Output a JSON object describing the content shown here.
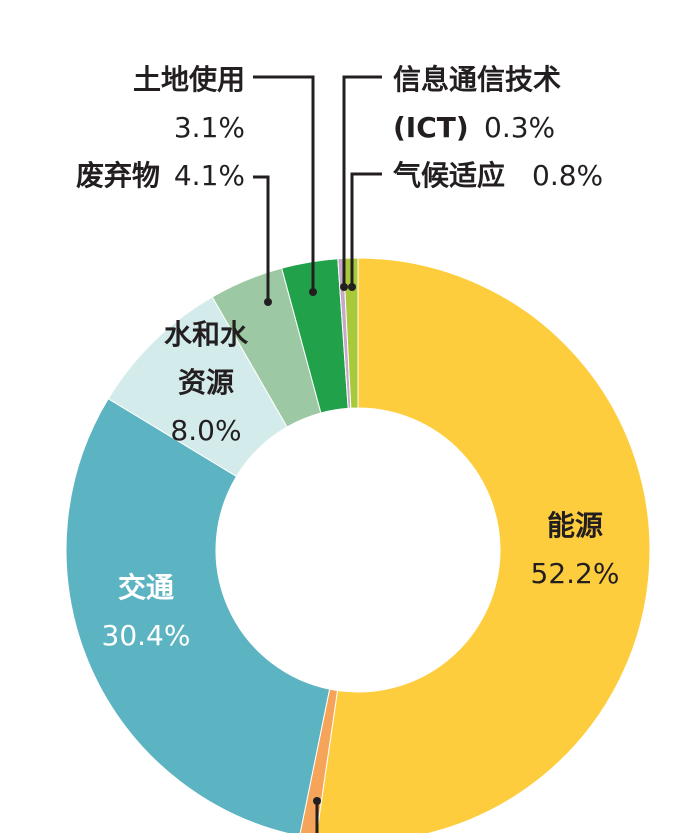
{
  "chart_data": {
    "type": "pie",
    "variant": "donut",
    "slices": [
      {
        "name": "能源",
        "percent_label": "52.2%",
        "value": 52.2,
        "color": "#fdcd3e"
      },
      {
        "name": "",
        "percent_label": "",
        "value": 0.9,
        "color": "#f5a45a"
      },
      {
        "name": "交通",
        "percent_label": "30.4%",
        "value": 30.4,
        "color": "#5cb3c2"
      },
      {
        "name": "水和水资源",
        "percent_label": "8.0%",
        "value": 8.0,
        "color": "#d4ebeb"
      },
      {
        "name": "废弃物",
        "percent_label": "4.1%",
        "value": 4.1,
        "color": "#9dc8a4"
      },
      {
        "name": "土地使用",
        "percent_label": "3.1%",
        "value": 3.1,
        "color": "#21a24a"
      },
      {
        "name": "信息通信技术 (ICT)",
        "percent_label": "0.3%",
        "value": 0.3,
        "color": "#c7a8c9"
      },
      {
        "name": "气候适应",
        "percent_label": "0.8%",
        "value": 0.8,
        "color": "#a8c93a"
      }
    ]
  },
  "labels": {
    "energy": {
      "name": "能源",
      "pct": "52.2%"
    },
    "transport": {
      "name": "交通",
      "pct": "30.4%"
    },
    "water": {
      "line1": "水和水",
      "line2": "资源",
      "pct": "8.0%"
    },
    "waste": {
      "name": "废弃物",
      "pct": "4.1%"
    },
    "land": {
      "name": "土地使用",
      "pct": "3.1%"
    },
    "ict": {
      "line1": "信息通信技术",
      "line2": "(ICT)",
      "pct": "0.3%"
    },
    "adapt": {
      "name": "气候适应",
      "pct": "0.8%"
    }
  }
}
